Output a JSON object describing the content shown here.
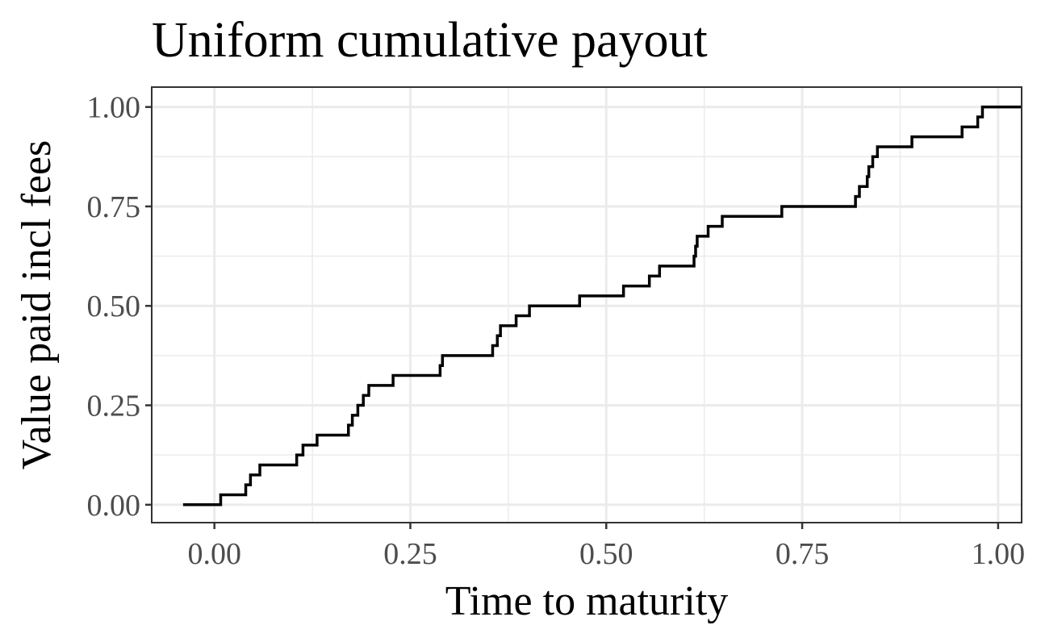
{
  "chart_data": {
    "type": "line",
    "step": true,
    "title": "Uniform cumulative payout",
    "xlabel": "Time to maturity",
    "ylabel": "Value paid incl fees",
    "xlim": [
      -0.08,
      1.03
    ],
    "ylim": [
      -0.045,
      1.05
    ],
    "x_ticks": [
      "0.00",
      "0.25",
      "0.50",
      "0.75",
      "1.00"
    ],
    "y_ticks": [
      "0.00",
      "0.25",
      "0.50",
      "0.75",
      "1.00"
    ],
    "grid": true,
    "legend": "none",
    "series": [
      {
        "color": "#000000",
        "x": [
          -0.04,
          0.008,
          0.04,
          0.046,
          0.052,
          0.058,
          0.105,
          0.113,
          0.131,
          0.171,
          0.176,
          0.183,
          0.19,
          0.197,
          0.2,
          0.228,
          0.288,
          0.291,
          0.355,
          0.361,
          0.365,
          0.37,
          0.385,
          0.402,
          0.466,
          0.522,
          0.555,
          0.568,
          0.612,
          0.614,
          0.616,
          0.63,
          0.648,
          0.724,
          0.818,
          0.823,
          0.829,
          0.833,
          0.835,
          0.837,
          0.84,
          0.846,
          0.852,
          0.89,
          0.954,
          0.974,
          0.98,
          1.03
        ],
        "y": [
          0.0,
          0.025,
          0.05,
          0.075,
          0.075,
          0.1,
          0.125,
          0.15,
          0.175,
          0.2,
          0.225,
          0.25,
          0.275,
          0.3,
          0.3,
          0.325,
          0.35,
          0.375,
          0.4,
          0.425,
          0.45,
          0.45,
          0.475,
          0.5,
          0.525,
          0.55,
          0.575,
          0.6,
          0.625,
          0.65,
          0.675,
          0.7,
          0.725,
          0.75,
          0.775,
          0.8,
          0.8,
          0.825,
          0.85,
          0.85,
          0.875,
          0.9,
          0.9,
          0.925,
          0.95,
          0.975,
          1.0,
          1.0
        ]
      }
    ]
  }
}
